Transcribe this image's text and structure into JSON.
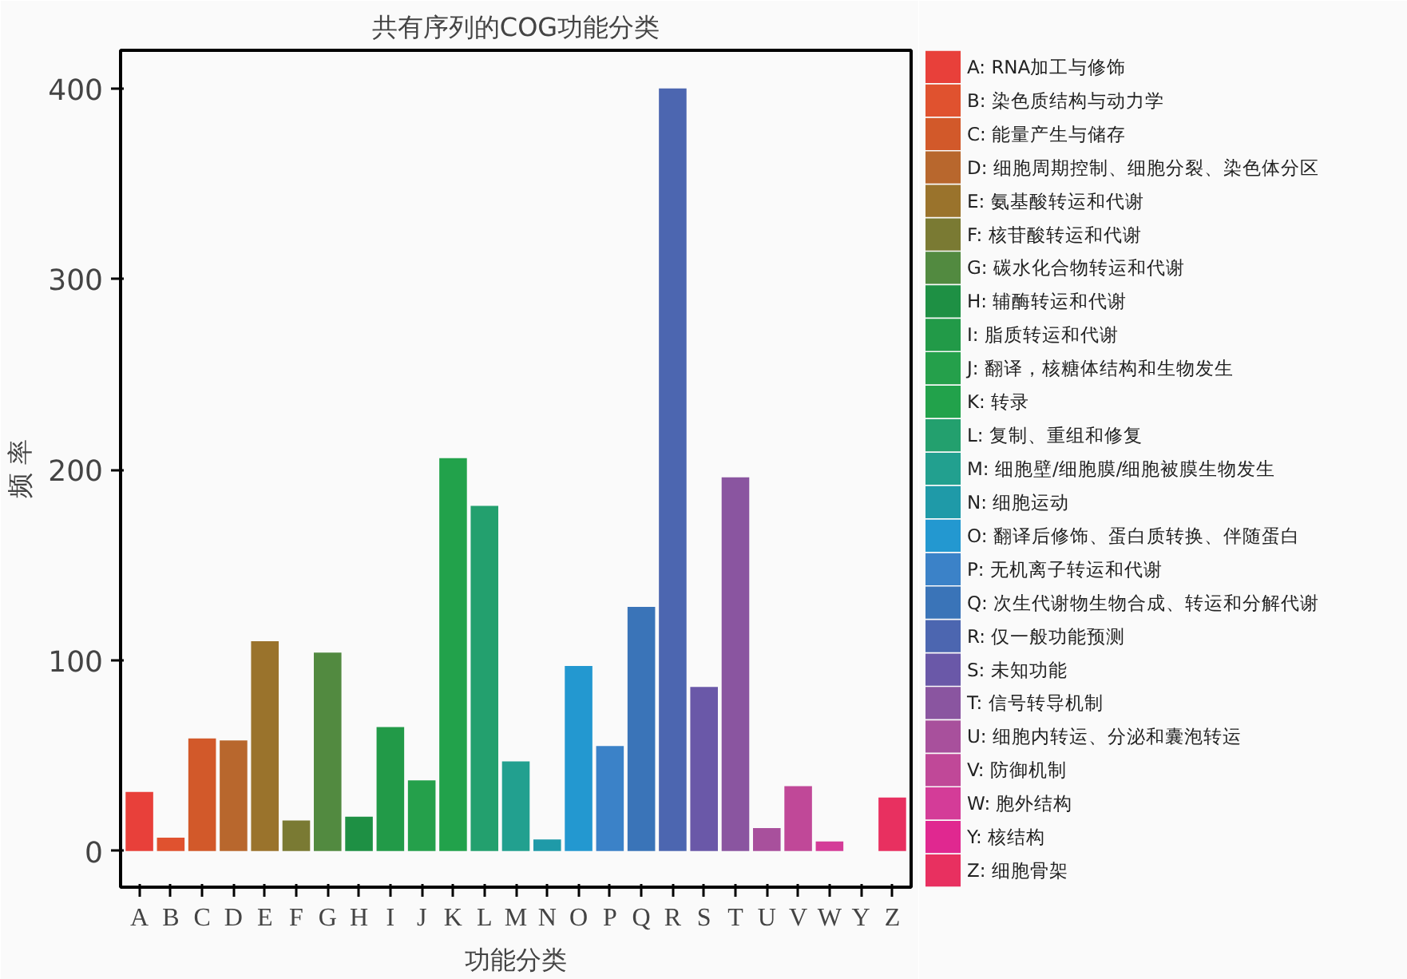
{
  "chart_data": {
    "type": "bar",
    "title": "共有序列的COG功能分类",
    "xlabel": "功能分类",
    "ylabel": "频 率",
    "categories": [
      "A",
      "B",
      "C",
      "D",
      "E",
      "F",
      "G",
      "H",
      "I",
      "J",
      "K",
      "L",
      "M",
      "N",
      "O",
      "P",
      "Q",
      "R",
      "S",
      "T",
      "U",
      "V",
      "W",
      "Y",
      "Z"
    ],
    "series": [
      {
        "name": "A:  RNA加工与修饰",
        "color": "#e8403a",
        "values": [
          31,
          null,
          null,
          null,
          null,
          null,
          null,
          null,
          null,
          null,
          null,
          null,
          null,
          null,
          null,
          null,
          null,
          null,
          null,
          null,
          null,
          null,
          null,
          null,
          null
        ]
      },
      {
        "name": "B:  染色质结构与动力学",
        "color": "#e0522f",
        "values": [
          null,
          7,
          null,
          null,
          null,
          null,
          null,
          null,
          null,
          null,
          null,
          null,
          null,
          null,
          null,
          null,
          null,
          null,
          null,
          null,
          null,
          null,
          null,
          null,
          null
        ]
      },
      {
        "name": "C:  能量产生与储存",
        "color": "#d2592a",
        "values": [
          null,
          null,
          59,
          null,
          null,
          null,
          null,
          null,
          null,
          null,
          null,
          null,
          null,
          null,
          null,
          null,
          null,
          null,
          null,
          null,
          null,
          null,
          null,
          null,
          null
        ]
      },
      {
        "name": "D:  细胞周期控制、细胞分裂、染色体分区",
        "color": "#b8672d",
        "values": [
          null,
          null,
          null,
          58,
          null,
          null,
          null,
          null,
          null,
          null,
          null,
          null,
          null,
          null,
          null,
          null,
          null,
          null,
          null,
          null,
          null,
          null,
          null,
          null,
          null
        ]
      },
      {
        "name": "E:  氨基酸转运和代谢",
        "color": "#9a732c",
        "values": [
          null,
          null,
          null,
          null,
          110,
          null,
          null,
          null,
          null,
          null,
          null,
          null,
          null,
          null,
          null,
          null,
          null,
          null,
          null,
          null,
          null,
          null,
          null,
          null,
          null
        ]
      },
      {
        "name": "F:  核苷酸转运和代谢",
        "color": "#7a7a33",
        "values": [
          null,
          null,
          null,
          null,
          null,
          16,
          null,
          null,
          null,
          null,
          null,
          null,
          null,
          null,
          null,
          null,
          null,
          null,
          null,
          null,
          null,
          null,
          null,
          null,
          null
        ]
      },
      {
        "name": "G:  碳水化合物转运和代谢",
        "color": "#528a40",
        "values": [
          null,
          null,
          null,
          null,
          null,
          null,
          104,
          null,
          null,
          null,
          null,
          null,
          null,
          null,
          null,
          null,
          null,
          null,
          null,
          null,
          null,
          null,
          null,
          null,
          null
        ]
      },
      {
        "name": "H:  辅酶转运和代谢",
        "color": "#1e9044",
        "values": [
          null,
          null,
          null,
          null,
          null,
          null,
          null,
          18,
          null,
          null,
          null,
          null,
          null,
          null,
          null,
          null,
          null,
          null,
          null,
          null,
          null,
          null,
          null,
          null,
          null
        ]
      },
      {
        "name": "I:  脂质转运和代谢",
        "color": "#229a48",
        "values": [
          null,
          null,
          null,
          null,
          null,
          null,
          null,
          null,
          65,
          null,
          null,
          null,
          null,
          null,
          null,
          null,
          null,
          null,
          null,
          null,
          null,
          null,
          null,
          null,
          null
        ]
      },
      {
        "name": "J:  翻译，核糖体结构和生物发生",
        "color": "#25a04b",
        "values": [
          null,
          null,
          null,
          null,
          null,
          null,
          null,
          null,
          null,
          37,
          null,
          null,
          null,
          null,
          null,
          null,
          null,
          null,
          null,
          null,
          null,
          null,
          null,
          null,
          null
        ]
      },
      {
        "name": "K:  转录",
        "color": "#22a24b",
        "values": [
          null,
          null,
          null,
          null,
          null,
          null,
          null,
          null,
          null,
          null,
          206,
          null,
          null,
          null,
          null,
          null,
          null,
          null,
          null,
          null,
          null,
          null,
          null,
          null,
          null
        ]
      },
      {
        "name": "L:  复制、重组和修复",
        "color": "#23a06e",
        "values": [
          null,
          null,
          null,
          null,
          null,
          null,
          null,
          null,
          null,
          null,
          null,
          181,
          null,
          null,
          null,
          null,
          null,
          null,
          null,
          null,
          null,
          null,
          null,
          null,
          null
        ]
      },
      {
        "name": "M:  细胞壁/细胞膜/细胞被膜生物发生",
        "color": "#22a08f",
        "values": [
          null,
          null,
          null,
          null,
          null,
          null,
          null,
          null,
          null,
          null,
          null,
          null,
          47,
          null,
          null,
          null,
          null,
          null,
          null,
          null,
          null,
          null,
          null,
          null,
          null
        ]
      },
      {
        "name": "N:  细胞运动",
        "color": "#1f9aa8",
        "values": [
          null,
          null,
          null,
          null,
          null,
          null,
          null,
          null,
          null,
          null,
          null,
          null,
          null,
          6,
          null,
          null,
          null,
          null,
          null,
          null,
          null,
          null,
          null,
          null,
          null
        ]
      },
      {
        "name": "O:  翻译后修饰、蛋白质转换、伴随蛋白",
        "color": "#2398d0",
        "values": [
          null,
          null,
          null,
          null,
          null,
          null,
          null,
          null,
          null,
          null,
          null,
          null,
          null,
          null,
          97,
          null,
          null,
          null,
          null,
          null,
          null,
          null,
          null,
          null,
          null
        ]
      },
      {
        "name": "P:  无机离子转运和代谢",
        "color": "#3b82c8",
        "values": [
          null,
          null,
          null,
          null,
          null,
          null,
          null,
          null,
          null,
          null,
          null,
          null,
          null,
          null,
          null,
          55,
          null,
          null,
          null,
          null,
          null,
          null,
          null,
          null,
          null
        ]
      },
      {
        "name": "Q:  次生代谢物生物合成、转运和分解代谢",
        "color": "#3a74b8",
        "values": [
          null,
          null,
          null,
          null,
          null,
          null,
          null,
          null,
          null,
          null,
          null,
          null,
          null,
          null,
          null,
          null,
          128,
          null,
          null,
          null,
          null,
          null,
          null,
          null,
          null
        ]
      },
      {
        "name": "R:  仅一般功能预测",
        "color": "#4c66b0",
        "values": [
          null,
          null,
          null,
          null,
          null,
          null,
          null,
          null,
          null,
          null,
          null,
          null,
          null,
          null,
          null,
          null,
          null,
          400,
          null,
          null,
          null,
          null,
          null,
          null,
          null
        ]
      },
      {
        "name": "S:  未知功能",
        "color": "#6a58a8",
        "values": [
          null,
          null,
          null,
          null,
          null,
          null,
          null,
          null,
          null,
          null,
          null,
          null,
          null,
          null,
          null,
          null,
          null,
          null,
          86,
          null,
          null,
          null,
          null,
          null,
          null
        ]
      },
      {
        "name": "T:  信号转导机制",
        "color": "#8a55a0",
        "values": [
          null,
          null,
          null,
          null,
          null,
          null,
          null,
          null,
          null,
          null,
          null,
          null,
          null,
          null,
          null,
          null,
          null,
          null,
          null,
          196,
          null,
          null,
          null,
          null,
          null
        ]
      },
      {
        "name": "U:  细胞内转运、分泌和囊泡转运",
        "color": "#a8509c",
        "values": [
          null,
          null,
          null,
          null,
          null,
          null,
          null,
          null,
          null,
          null,
          null,
          null,
          null,
          null,
          null,
          null,
          null,
          null,
          null,
          null,
          12,
          null,
          null,
          null,
          null
        ]
      },
      {
        "name": "V:  防御机制",
        "color": "#c04898",
        "values": [
          null,
          null,
          null,
          null,
          null,
          null,
          null,
          null,
          null,
          null,
          null,
          null,
          null,
          null,
          null,
          null,
          null,
          null,
          null,
          null,
          null,
          34,
          null,
          null,
          null
        ]
      },
      {
        "name": "W:  胞外结构",
        "color": "#d43c98",
        "values": [
          null,
          null,
          null,
          null,
          null,
          null,
          null,
          null,
          null,
          null,
          null,
          null,
          null,
          null,
          null,
          null,
          null,
          null,
          null,
          null,
          null,
          null,
          5,
          null,
          null
        ]
      },
      {
        "name": "Y:  核结构",
        "color": "#e02890",
        "values": [
          null,
          null,
          null,
          null,
          null,
          null,
          null,
          null,
          null,
          null,
          null,
          null,
          null,
          null,
          null,
          null,
          null,
          null,
          null,
          null,
          null,
          null,
          null,
          0,
          null
        ]
      },
      {
        "name": "Z:  细胞骨架",
        "color": "#e83060",
        "values": [
          null,
          null,
          null,
          null,
          null,
          null,
          null,
          null,
          null,
          null,
          null,
          null,
          null,
          null,
          null,
          null,
          null,
          null,
          null,
          null,
          null,
          null,
          null,
          null,
          28
        ]
      }
    ],
    "ylim": [
      -19,
      420
    ],
    "yticks": [
      0,
      100,
      200,
      300,
      400
    ],
    "grid": false,
    "legend": "right"
  }
}
